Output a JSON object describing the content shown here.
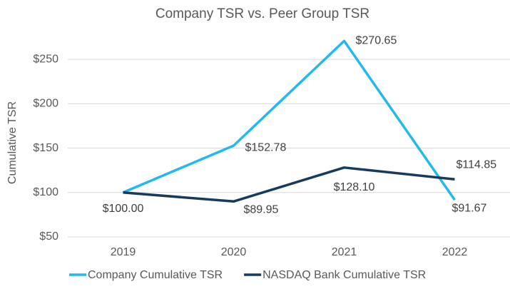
{
  "chart_data": {
    "type": "line",
    "title": "Company TSR vs. Peer Group TSR",
    "y_label": "Cumulative TSR",
    "categories": [
      "2019",
      "2020",
      "2021",
      "2022"
    ],
    "series": [
      {
        "name": "Company Cumulative TSR",
        "color": "#22b9ec",
        "values": [
          100,
          152.78,
          270.65,
          91.67
        ],
        "value_labels": [
          null,
          "$152.78",
          "$270.65",
          "$91.67"
        ]
      },
      {
        "name": "NASDAQ Bank Cumulative TSR",
        "color": "#173a5e",
        "values": [
          100,
          89.95,
          128.1,
          114.85
        ],
        "value_labels": [
          "$100.00",
          "$89.95",
          "$128.10",
          "$114.85"
        ]
      }
    ],
    "ylim": [
      50,
      275
    ],
    "yticks": [
      {
        "value": 50,
        "label": "$50"
      },
      {
        "value": 100,
        "label": "$100"
      },
      {
        "value": 150,
        "label": "$150"
      },
      {
        "value": 200,
        "label": "$200"
      },
      {
        "value": 250,
        "label": "$250"
      }
    ],
    "grid": true,
    "legend": "bottom"
  }
}
